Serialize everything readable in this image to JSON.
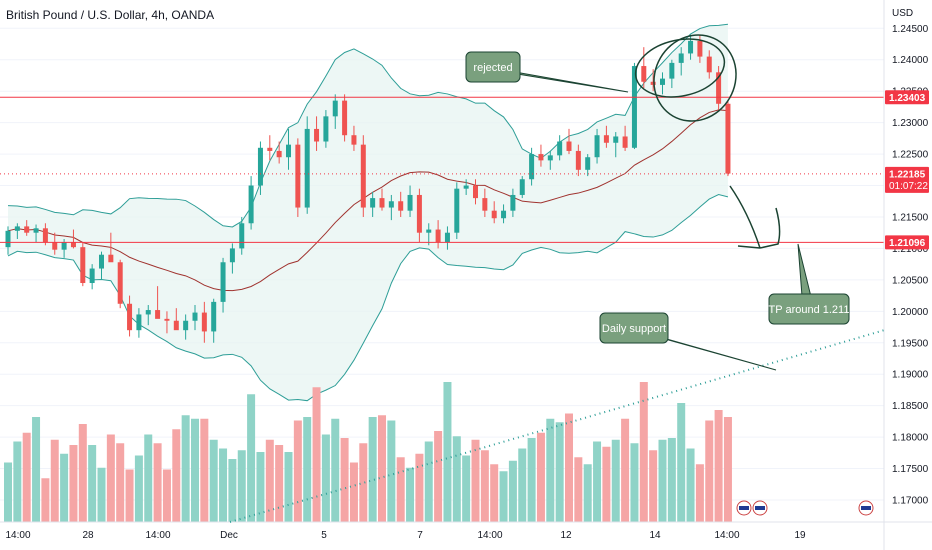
{
  "header": {
    "title": "British Pound / U.S. Dollar, 4h, OANDA"
  },
  "chart_data": {
    "type": "candlestick",
    "symbol": "British Pound / U.S. Dollar, 4h, OANDA",
    "currency_label": "USD",
    "y_ticks": [
      1.245,
      1.24,
      1.235,
      1.23,
      1.225,
      1.22,
      1.215,
      1.21,
      1.205,
      1.2,
      1.195,
      1.19,
      1.185,
      1.18,
      1.175,
      1.17
    ],
    "y_tick_labels": [
      "1.24500",
      "1.24000",
      "1.23500",
      "1.23000",
      "1.22500",
      "1.22000",
      "1.21500",
      "1.21000",
      "1.20500",
      "1.20000",
      "1.19500",
      "1.19000",
      "1.18500",
      "1.18000",
      "1.17500",
      "1.17000"
    ],
    "ylim": [
      1.1665,
      1.2495
    ],
    "x_ticks": [
      "14:00",
      "28",
      "14:00",
      "Dec",
      "5",
      "7",
      "14:00",
      "12",
      "14",
      "14:00",
      "19"
    ],
    "price_tags": [
      {
        "value": 1.23403,
        "label": "1.23403",
        "color": "#f23645"
      },
      {
        "value": 1.22185,
        "label": "1.22185",
        "sub": "01:07:22",
        "color": "#f23645"
      },
      {
        "value": 1.21096,
        "label": "1.21096",
        "color": "#f23645"
      }
    ],
    "horizontal_lines": [
      {
        "value": 1.23403,
        "color": "#f23645"
      },
      {
        "value": 1.21096,
        "color": "#f23645"
      },
      {
        "value": 1.22185,
        "color": "#f23645",
        "style": "dotted"
      }
    ],
    "candles": [
      [
        1.2102,
        1.2135,
        1.209,
        1.2128
      ],
      [
        1.2128,
        1.214,
        1.2115,
        1.2135
      ],
      [
        1.2135,
        1.2145,
        1.212,
        1.2125
      ],
      [
        1.2125,
        1.2138,
        1.211,
        1.2132
      ],
      [
        1.2132,
        1.214,
        1.2105,
        1.211
      ],
      [
        1.211,
        1.2125,
        1.209,
        1.2098
      ],
      [
        1.2098,
        1.2115,
        1.2085,
        1.211
      ],
      [
        1.211,
        1.213,
        1.21,
        1.2102
      ],
      [
        1.2102,
        1.211,
        1.204,
        1.2045
      ],
      [
        1.2045,
        1.2075,
        1.2035,
        1.2068
      ],
      [
        1.2068,
        1.2095,
        1.205,
        1.209
      ],
      [
        1.209,
        1.2125,
        1.208,
        1.2078
      ],
      [
        1.2078,
        1.2082,
        1.2005,
        1.2012
      ],
      [
        1.2012,
        1.2025,
        1.196,
        1.197
      ],
      [
        1.197,
        1.2005,
        1.1958,
        1.1995
      ],
      [
        1.1995,
        1.201,
        1.1978,
        1.2002
      ],
      [
        1.2002,
        1.204,
        1.199,
        1.1988
      ],
      [
        1.1988,
        1.2,
        1.1965,
        1.1985
      ],
      [
        1.1985,
        1.2005,
        1.1975,
        1.197
      ],
      [
        1.197,
        1.1995,
        1.1955,
        1.1985
      ],
      [
        1.1985,
        1.201,
        1.197,
        1.1998
      ],
      [
        1.1998,
        1.2015,
        1.195,
        1.1968
      ],
      [
        1.1968,
        1.202,
        1.195,
        1.2015
      ],
      [
        1.2015,
        1.2085,
        1.1998,
        1.2078
      ],
      [
        1.2078,
        1.2108,
        1.206,
        1.21
      ],
      [
        1.21,
        1.215,
        1.209,
        1.214
      ],
      [
        1.214,
        1.2215,
        1.213,
        1.22
      ],
      [
        1.22,
        1.227,
        1.2185,
        1.226
      ],
      [
        1.226,
        1.228,
        1.224,
        1.2255
      ],
      [
        1.2255,
        1.227,
        1.2235,
        1.2245
      ],
      [
        1.2245,
        1.229,
        1.2225,
        1.2265
      ],
      [
        1.2265,
        1.2275,
        1.215,
        1.2165
      ],
      [
        1.2165,
        1.231,
        1.2155,
        1.229
      ],
      [
        1.229,
        1.231,
        1.2255,
        1.227
      ],
      [
        1.227,
        1.232,
        1.226,
        1.231
      ],
      [
        1.231,
        1.2345,
        1.229,
        1.2335
      ],
      [
        1.2335,
        1.2345,
        1.227,
        1.228
      ],
      [
        1.228,
        1.2295,
        1.2255,
        1.2265
      ],
      [
        1.2265,
        1.228,
        1.215,
        1.2165
      ],
      [
        1.2165,
        1.219,
        1.215,
        1.218
      ],
      [
        1.218,
        1.2195,
        1.216,
        1.2165
      ],
      [
        1.2165,
        1.2185,
        1.2145,
        1.2175
      ],
      [
        1.2175,
        1.219,
        1.215,
        1.216
      ],
      [
        1.216,
        1.22,
        1.215,
        1.2185
      ],
      [
        1.2185,
        1.2195,
        1.211,
        1.2125
      ],
      [
        1.2125,
        1.214,
        1.2105,
        1.213
      ],
      [
        1.213,
        1.2145,
        1.21,
        1.211
      ],
      [
        1.211,
        1.2135,
        1.2098,
        1.2125
      ],
      [
        1.2125,
        1.2205,
        1.2115,
        1.2195
      ],
      [
        1.2195,
        1.221,
        1.2185,
        1.22
      ],
      [
        1.22,
        1.221,
        1.217,
        1.218
      ],
      [
        1.218,
        1.2195,
        1.215,
        1.216
      ],
      [
        1.216,
        1.2175,
        1.214,
        1.2148
      ],
      [
        1.2148,
        1.217,
        1.214,
        1.216
      ],
      [
        1.216,
        1.2195,
        1.215,
        1.2185
      ],
      [
        1.2185,
        1.2215,
        1.218,
        1.221
      ],
      [
        1.221,
        1.226,
        1.22,
        1.225
      ],
      [
        1.225,
        1.2265,
        1.223,
        1.224
      ],
      [
        1.224,
        1.2255,
        1.2225,
        1.2248
      ],
      [
        1.2248,
        1.228,
        1.224,
        1.227
      ],
      [
        1.227,
        1.229,
        1.225,
        1.2255
      ],
      [
        1.2255,
        1.2265,
        1.2215,
        1.2225
      ],
      [
        1.2225,
        1.225,
        1.2215,
        1.2245
      ],
      [
        1.2245,
        1.229,
        1.2235,
        1.228
      ],
      [
        1.228,
        1.2295,
        1.226,
        1.2268
      ],
      [
        1.2268,
        1.2285,
        1.2245,
        1.2278
      ],
      [
        1.2278,
        1.2295,
        1.2255,
        1.226
      ],
      [
        1.226,
        1.2395,
        1.2258,
        1.239
      ],
      [
        1.239,
        1.242,
        1.2355,
        1.2365
      ],
      [
        1.2365,
        1.2385,
        1.235,
        1.236
      ],
      [
        1.236,
        1.238,
        1.2345,
        1.237
      ],
      [
        1.237,
        1.24,
        1.2355,
        1.2395
      ],
      [
        1.2395,
        1.242,
        1.2375,
        1.241
      ],
      [
        1.241,
        1.244,
        1.24,
        1.243
      ],
      [
        1.243,
        1.244,
        1.2395,
        1.2405
      ],
      [
        1.2405,
        1.2415,
        1.237,
        1.238
      ],
      [
        1.238,
        1.239,
        1.232,
        1.233
      ],
      [
        1.233,
        1.2335,
        1.2215,
        1.2219
      ]
    ],
    "volume": [
      34,
      46,
      51,
      60,
      25,
      47,
      39,
      44,
      56,
      44,
      31,
      50,
      45,
      30,
      38,
      50,
      45,
      30,
      53,
      61,
      59,
      59,
      47,
      42,
      36,
      41,
      73,
      40,
      47,
      44,
      40,
      58,
      60,
      77,
      50,
      59,
      48,
      34,
      45,
      60,
      61,
      58,
      37,
      31,
      39,
      46,
      52,
      80,
      49,
      38,
      47,
      41,
      33,
      29,
      35,
      42,
      48,
      51,
      59,
      57,
      62,
      37,
      33,
      46,
      43,
      47,
      59,
      45,
      80,
      41,
      47,
      48,
      68,
      42,
      33,
      58,
      64,
      60
    ],
    "volume_up": [
      1,
      1,
      0,
      1,
      0,
      0,
      1,
      0,
      0,
      1,
      1,
      0,
      0,
      0,
      1,
      1,
      0,
      0,
      0,
      1,
      1,
      0,
      1,
      1,
      1,
      1,
      1,
      1,
      0,
      0,
      1,
      0,
      1,
      0,
      1,
      1,
      0,
      0,
      0,
      1,
      0,
      1,
      0,
      1,
      0,
      1,
      0,
      1,
      1,
      1,
      0,
      0,
      0,
      1,
      1,
      1,
      1,
      0,
      1,
      1,
      0,
      0,
      1,
      1,
      0,
      1,
      0,
      1,
      0,
      0,
      1,
      1,
      1,
      1,
      0,
      0,
      0,
      0
    ],
    "annotations": [
      {
        "text": "rejected"
      },
      {
        "text": "TP around 1.211"
      },
      {
        "text": "Daily support"
      }
    ]
  }
}
